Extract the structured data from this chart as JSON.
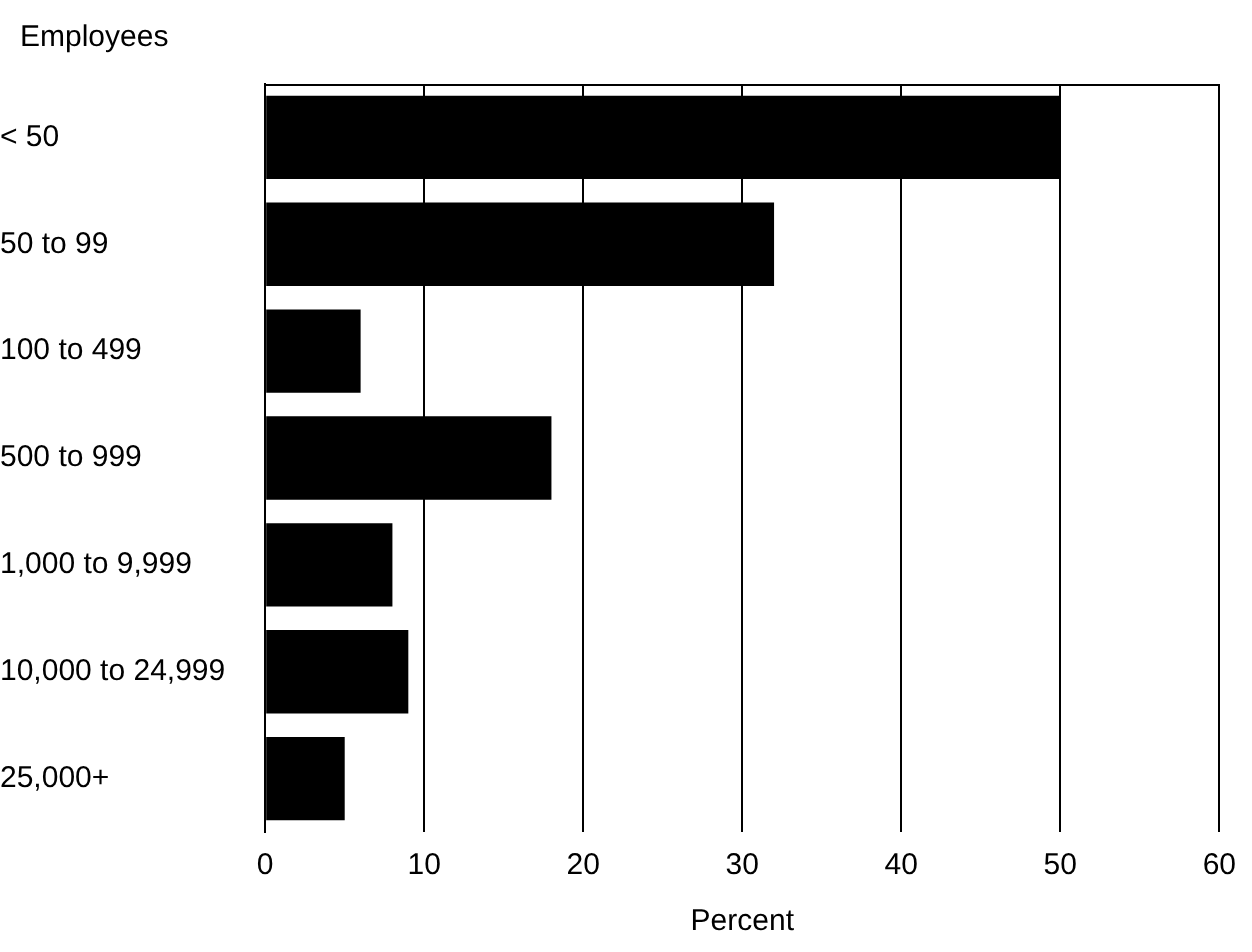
{
  "chart_data": {
    "type": "bar",
    "orientation": "horizontal",
    "ylabel": "Employees",
    "xlabel": "Percent",
    "categories": [
      "< 50",
      "50 to 99",
      "100 to 499",
      "500 to 999",
      "1,000 to 9,999",
      "10,000 to 24,999",
      "25,000+"
    ],
    "values": [
      50,
      32,
      6,
      18,
      8,
      9,
      5
    ],
    "color": "#000000",
    "xlim": [
      0,
      60
    ],
    "xticks": [
      0,
      10,
      20,
      30,
      40,
      50,
      60
    ],
    "grid": "x",
    "legend": false
  }
}
